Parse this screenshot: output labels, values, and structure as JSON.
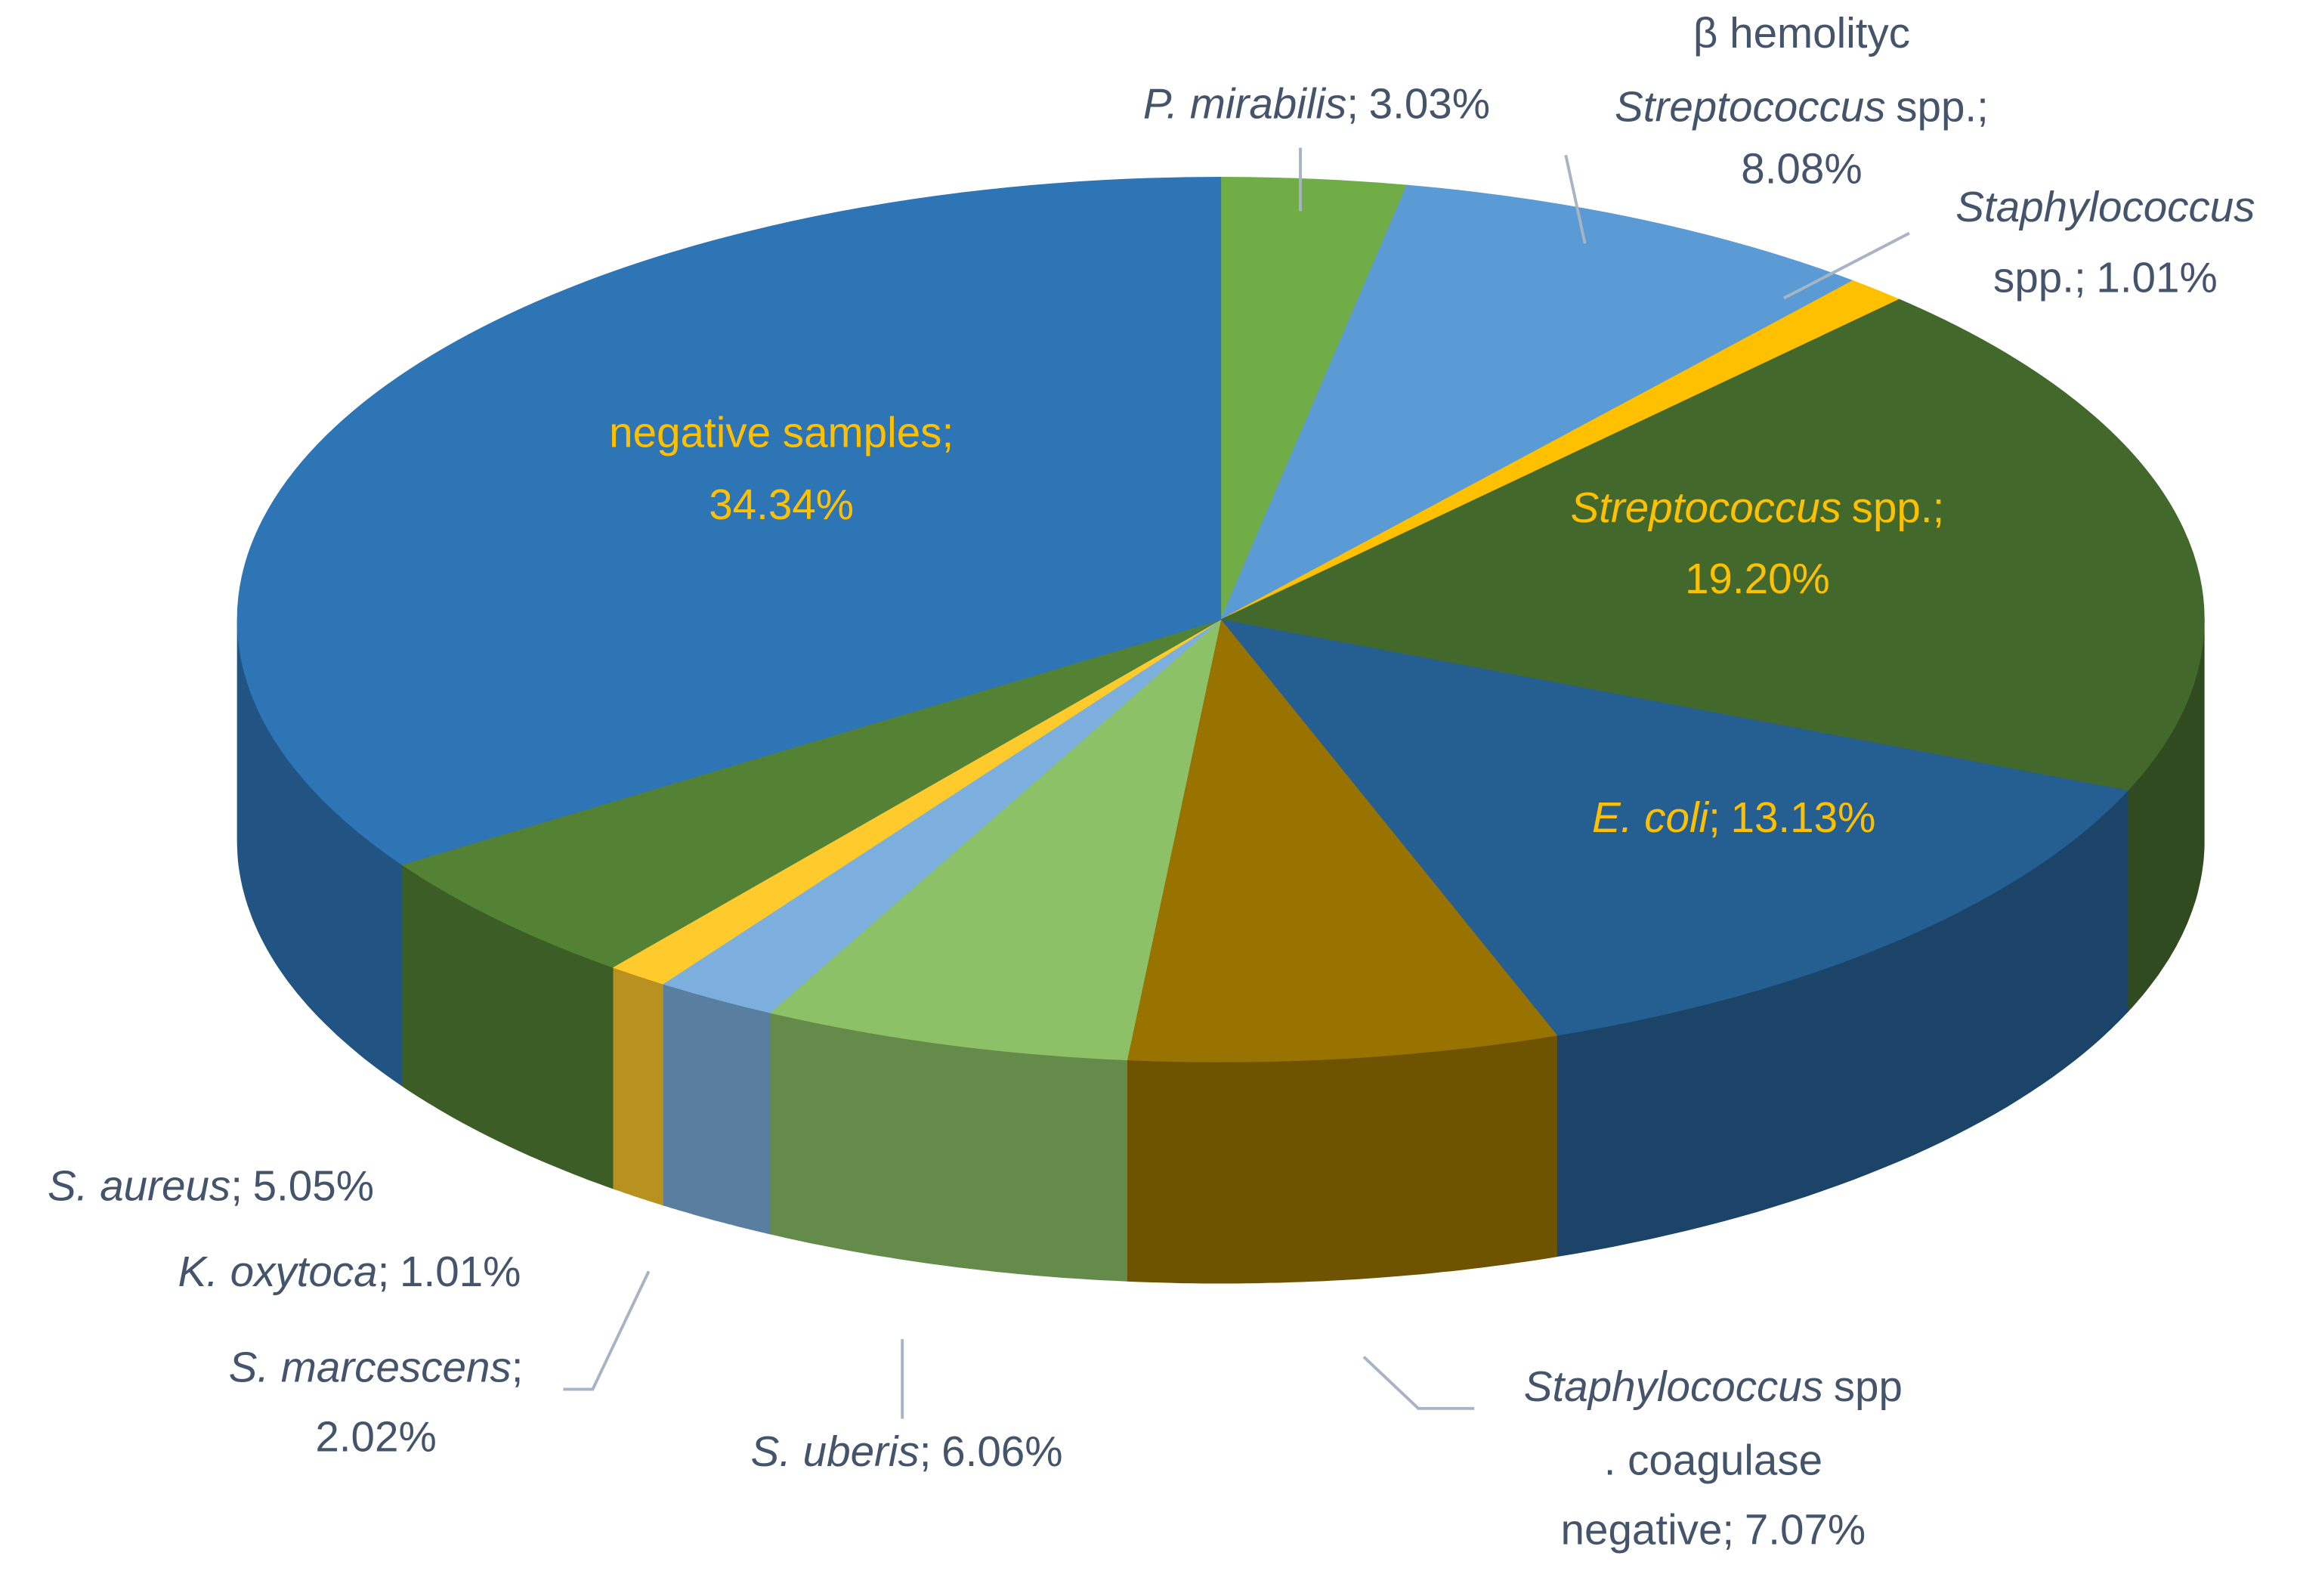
{
  "chart_data": {
    "type": "pie3d",
    "categories": [
      [
        {
          "text": "P. mirabilis",
          "italic": true
        },
        {
          "text": ";"
        }
      ],
      [
        {
          "text": "β hemolityc"
        },
        {
          "text": "Streptococcus",
          "italic": true
        },
        {
          "text": "spp.;"
        }
      ],
      [
        {
          "text": "Staphylococcus",
          "italic": true
        },
        {
          "text": "spp.;"
        }
      ],
      [
        {
          "text": "Streptococcus",
          "italic": true
        },
        {
          "text": "spp.;"
        }
      ],
      [
        {
          "text": "E. coli",
          "italic": true
        },
        {
          "text": ";"
        }
      ],
      [
        {
          "text": "Staphylococcus",
          "italic": true
        },
        {
          "text": "spp"
        },
        {
          "text": ". coagulase"
        },
        {
          "text": "negative;"
        }
      ],
      [
        {
          "text": "S. uberis",
          "italic": true
        },
        {
          "text": ";"
        }
      ],
      [
        {
          "text": "S. marcescens",
          "italic": true
        },
        {
          "text": ";"
        }
      ],
      [
        {
          "text": "K. oxytoca",
          "italic": true
        },
        {
          "text": ";"
        }
      ],
      [
        {
          "text": "S. aureus",
          "italic": true
        },
        {
          "text": ";"
        }
      ],
      [
        {
          "text": "negative samples;"
        }
      ]
    ],
    "values": [
      3.03,
      8.08,
      1.01,
      19.2,
      13.13,
      7.07,
      6.06,
      2.02,
      1.01,
      5.05,
      34.34
    ],
    "value_labels": [
      "3.03%",
      "8.08%",
      "1.01%",
      "19.20%",
      "13.13%",
      "7.07%",
      "6.06%",
      "2.02%",
      "1.01%",
      "5.05%",
      "34.34%"
    ],
    "colors": [
      "#70ad47",
      "#5b9bd5",
      "#ffc000",
      "#43682b",
      "#255e91",
      "#997300",
      "#8cc168",
      "#7cafdd",
      "#ffca2c",
      "#548235",
      "#2e75b6"
    ],
    "label_colors": [
      "#44546a",
      "#44546a",
      "#44546a",
      "#ffc000",
      "#ffc000",
      "#44546a",
      "#44546a",
      "#44546a",
      "#44546a",
      "#44546a",
      "#ffc000"
    ]
  }
}
